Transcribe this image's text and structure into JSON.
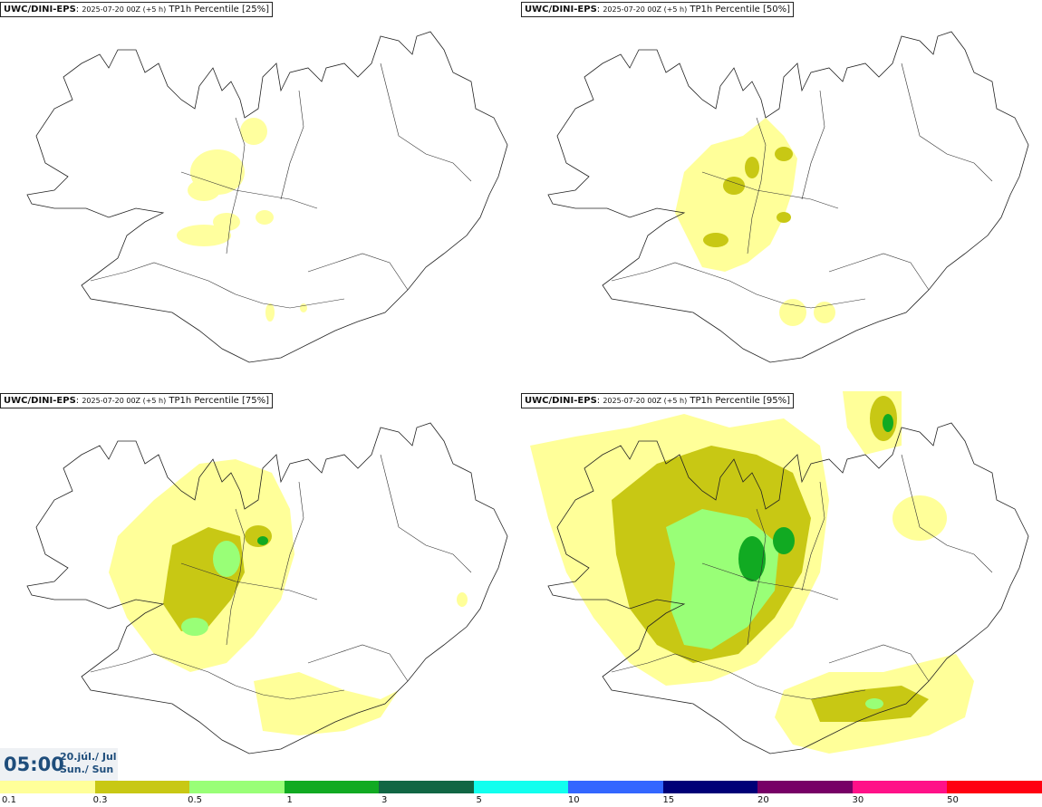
{
  "panels": [
    {
      "model": "UWC/DINI-EPS",
      "run": "2025-07-20 00Z (+5 h)",
      "field": "TP1h Percentile [25%]"
    },
    {
      "model": "UWC/DINI-EPS",
      "run": "2025-07-20 00Z (+5 h)",
      "field": "TP1h Percentile [50%]"
    },
    {
      "model": "UWC/DINI-EPS",
      "run": "2025-07-20 00Z (+5 h)",
      "field": "TP1h Percentile [75%]"
    },
    {
      "model": "UWC/DINI-EPS",
      "run": "2025-07-20 00Z (+5 h)",
      "field": "TP1h Percentile [95%]"
    }
  ],
  "time": {
    "clock": "05:00",
    "date_line1": "20.júl./ Jul",
    "date_line2": "Sun./ Sun"
  },
  "legend": {
    "labels": [
      "0.1",
      "0.3",
      "0.5",
      "1",
      "3",
      "5",
      "10",
      "15",
      "20",
      "30",
      "50"
    ],
    "colors": [
      "#ffff99",
      "#c8c814",
      "#99ff77",
      "#11aa22",
      "#116644",
      "#11ffee",
      "#3366ff",
      "#000077",
      "#770066",
      "#ff1188",
      "#ff0011"
    ]
  },
  "precip_colors": {
    "light": "#ffff99",
    "olive": "#c8c814",
    "lightgreen": "#99ff77",
    "green": "#11aa22"
  }
}
